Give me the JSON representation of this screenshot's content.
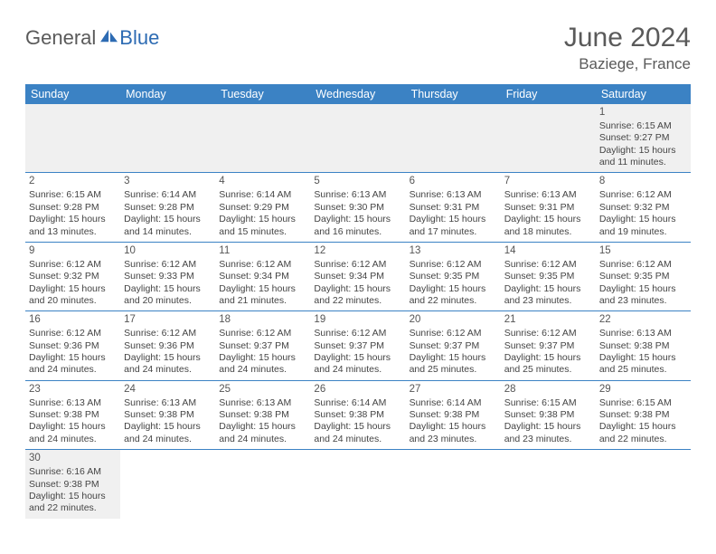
{
  "logo": {
    "text1": "General",
    "text2": "Blue"
  },
  "title": "June 2024",
  "location": "Baziege, France",
  "weekdays": [
    "Sunday",
    "Monday",
    "Tuesday",
    "Wednesday",
    "Thursday",
    "Friday",
    "Saturday"
  ],
  "colors": {
    "header_bg": "#3b82c4",
    "header_text": "#ffffff",
    "border": "#3b82c4",
    "shade": "#f0f0f0",
    "logo_gray": "#5a5a5a",
    "logo_blue": "#2d6bb3"
  },
  "first_day_index": 6,
  "days": [
    {
      "n": "1",
      "sr": "Sunrise: 6:15 AM",
      "ss": "Sunset: 9:27 PM",
      "dl1": "Daylight: 15 hours",
      "dl2": "and 11 minutes."
    },
    {
      "n": "2",
      "sr": "Sunrise: 6:15 AM",
      "ss": "Sunset: 9:28 PM",
      "dl1": "Daylight: 15 hours",
      "dl2": "and 13 minutes."
    },
    {
      "n": "3",
      "sr": "Sunrise: 6:14 AM",
      "ss": "Sunset: 9:28 PM",
      "dl1": "Daylight: 15 hours",
      "dl2": "and 14 minutes."
    },
    {
      "n": "4",
      "sr": "Sunrise: 6:14 AM",
      "ss": "Sunset: 9:29 PM",
      "dl1": "Daylight: 15 hours",
      "dl2": "and 15 minutes."
    },
    {
      "n": "5",
      "sr": "Sunrise: 6:13 AM",
      "ss": "Sunset: 9:30 PM",
      "dl1": "Daylight: 15 hours",
      "dl2": "and 16 minutes."
    },
    {
      "n": "6",
      "sr": "Sunrise: 6:13 AM",
      "ss": "Sunset: 9:31 PM",
      "dl1": "Daylight: 15 hours",
      "dl2": "and 17 minutes."
    },
    {
      "n": "7",
      "sr": "Sunrise: 6:13 AM",
      "ss": "Sunset: 9:31 PM",
      "dl1": "Daylight: 15 hours",
      "dl2": "and 18 minutes."
    },
    {
      "n": "8",
      "sr": "Sunrise: 6:12 AM",
      "ss": "Sunset: 9:32 PM",
      "dl1": "Daylight: 15 hours",
      "dl2": "and 19 minutes."
    },
    {
      "n": "9",
      "sr": "Sunrise: 6:12 AM",
      "ss": "Sunset: 9:32 PM",
      "dl1": "Daylight: 15 hours",
      "dl2": "and 20 minutes."
    },
    {
      "n": "10",
      "sr": "Sunrise: 6:12 AM",
      "ss": "Sunset: 9:33 PM",
      "dl1": "Daylight: 15 hours",
      "dl2": "and 20 minutes."
    },
    {
      "n": "11",
      "sr": "Sunrise: 6:12 AM",
      "ss": "Sunset: 9:34 PM",
      "dl1": "Daylight: 15 hours",
      "dl2": "and 21 minutes."
    },
    {
      "n": "12",
      "sr": "Sunrise: 6:12 AM",
      "ss": "Sunset: 9:34 PM",
      "dl1": "Daylight: 15 hours",
      "dl2": "and 22 minutes."
    },
    {
      "n": "13",
      "sr": "Sunrise: 6:12 AM",
      "ss": "Sunset: 9:35 PM",
      "dl1": "Daylight: 15 hours",
      "dl2": "and 22 minutes."
    },
    {
      "n": "14",
      "sr": "Sunrise: 6:12 AM",
      "ss": "Sunset: 9:35 PM",
      "dl1": "Daylight: 15 hours",
      "dl2": "and 23 minutes."
    },
    {
      "n": "15",
      "sr": "Sunrise: 6:12 AM",
      "ss": "Sunset: 9:35 PM",
      "dl1": "Daylight: 15 hours",
      "dl2": "and 23 minutes."
    },
    {
      "n": "16",
      "sr": "Sunrise: 6:12 AM",
      "ss": "Sunset: 9:36 PM",
      "dl1": "Daylight: 15 hours",
      "dl2": "and 24 minutes."
    },
    {
      "n": "17",
      "sr": "Sunrise: 6:12 AM",
      "ss": "Sunset: 9:36 PM",
      "dl1": "Daylight: 15 hours",
      "dl2": "and 24 minutes."
    },
    {
      "n": "18",
      "sr": "Sunrise: 6:12 AM",
      "ss": "Sunset: 9:37 PM",
      "dl1": "Daylight: 15 hours",
      "dl2": "and 24 minutes."
    },
    {
      "n": "19",
      "sr": "Sunrise: 6:12 AM",
      "ss": "Sunset: 9:37 PM",
      "dl1": "Daylight: 15 hours",
      "dl2": "and 24 minutes."
    },
    {
      "n": "20",
      "sr": "Sunrise: 6:12 AM",
      "ss": "Sunset: 9:37 PM",
      "dl1": "Daylight: 15 hours",
      "dl2": "and 25 minutes."
    },
    {
      "n": "21",
      "sr": "Sunrise: 6:12 AM",
      "ss": "Sunset: 9:37 PM",
      "dl1": "Daylight: 15 hours",
      "dl2": "and 25 minutes."
    },
    {
      "n": "22",
      "sr": "Sunrise: 6:13 AM",
      "ss": "Sunset: 9:38 PM",
      "dl1": "Daylight: 15 hours",
      "dl2": "and 25 minutes."
    },
    {
      "n": "23",
      "sr": "Sunrise: 6:13 AM",
      "ss": "Sunset: 9:38 PM",
      "dl1": "Daylight: 15 hours",
      "dl2": "and 24 minutes."
    },
    {
      "n": "24",
      "sr": "Sunrise: 6:13 AM",
      "ss": "Sunset: 9:38 PM",
      "dl1": "Daylight: 15 hours",
      "dl2": "and 24 minutes."
    },
    {
      "n": "25",
      "sr": "Sunrise: 6:13 AM",
      "ss": "Sunset: 9:38 PM",
      "dl1": "Daylight: 15 hours",
      "dl2": "and 24 minutes."
    },
    {
      "n": "26",
      "sr": "Sunrise: 6:14 AM",
      "ss": "Sunset: 9:38 PM",
      "dl1": "Daylight: 15 hours",
      "dl2": "and 24 minutes."
    },
    {
      "n": "27",
      "sr": "Sunrise: 6:14 AM",
      "ss": "Sunset: 9:38 PM",
      "dl1": "Daylight: 15 hours",
      "dl2": "and 23 minutes."
    },
    {
      "n": "28",
      "sr": "Sunrise: 6:15 AM",
      "ss": "Sunset: 9:38 PM",
      "dl1": "Daylight: 15 hours",
      "dl2": "and 23 minutes."
    },
    {
      "n": "29",
      "sr": "Sunrise: 6:15 AM",
      "ss": "Sunset: 9:38 PM",
      "dl1": "Daylight: 15 hours",
      "dl2": "and 22 minutes."
    },
    {
      "n": "30",
      "sr": "Sunrise: 6:16 AM",
      "ss": "Sunset: 9:38 PM",
      "dl1": "Daylight: 15 hours",
      "dl2": "and 22 minutes."
    }
  ]
}
